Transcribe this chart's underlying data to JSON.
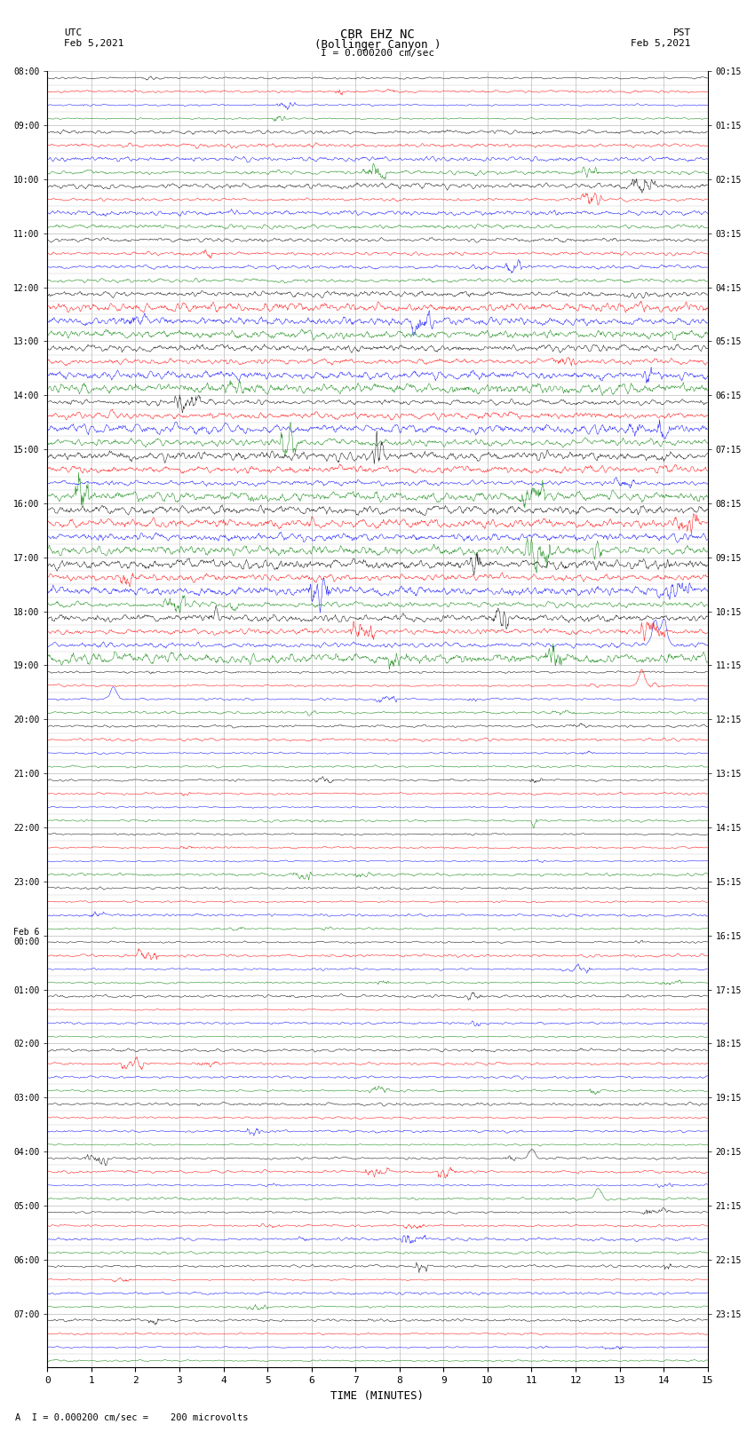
{
  "title_line1": "CBR EHZ NC",
  "title_line2": "(Bollinger Canyon )",
  "title_scale": "I = 0.000200 cm/sec",
  "label_left_top1": "UTC",
  "label_left_top2": "Feb 5,2021",
  "label_right_top1": "PST",
  "label_right_top2": "Feb 5,2021",
  "xlabel": "TIME (MINUTES)",
  "bottom_note": "A  I = 0.000200 cm/sec =    200 microvolts",
  "utc_hour_labels": [
    "08:00",
    "09:00",
    "10:00",
    "11:00",
    "12:00",
    "13:00",
    "14:00",
    "15:00",
    "16:00",
    "17:00",
    "18:00",
    "19:00",
    "20:00",
    "21:00",
    "22:00",
    "23:00",
    "Feb 6\n00:00",
    "01:00",
    "02:00",
    "03:00",
    "04:00",
    "05:00",
    "06:00",
    "07:00"
  ],
  "pst_hour_labels": [
    "00:15",
    "01:15",
    "02:15",
    "03:15",
    "04:15",
    "05:15",
    "06:15",
    "07:15",
    "08:15",
    "09:15",
    "10:15",
    "11:15",
    "12:15",
    "13:15",
    "14:15",
    "15:15",
    "16:15",
    "17:15",
    "18:15",
    "19:15",
    "20:15",
    "21:15",
    "22:15",
    "23:15"
  ],
  "n_hours": 24,
  "n_traces_per_hour": 4,
  "colors": [
    "black",
    "red",
    "blue",
    "green"
  ],
  "x_min": 0,
  "x_max": 15,
  "x_ticks": [
    0,
    1,
    2,
    3,
    4,
    5,
    6,
    7,
    8,
    9,
    10,
    11,
    12,
    13,
    14,
    15
  ],
  "background_color": "white",
  "grid_color": "#bbbbbb",
  "noise_base": 0.045,
  "seed": 42
}
